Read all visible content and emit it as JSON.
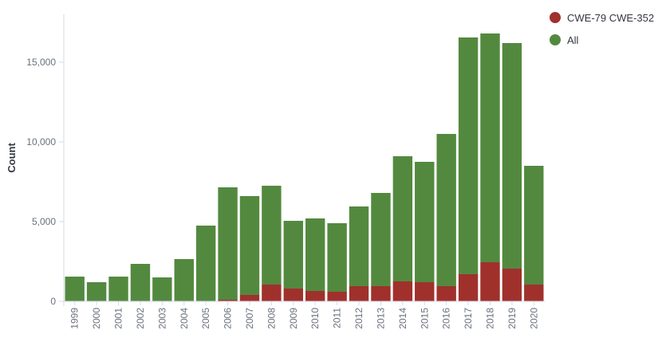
{
  "chart_data": {
    "type": "bar",
    "stacked": true,
    "categories": [
      "1999",
      "2000",
      "2001",
      "2002",
      "2003",
      "2004",
      "2005",
      "2006",
      "2007",
      "2008",
      "2009",
      "2010",
      "2011",
      "2012",
      "2013",
      "2014",
      "2015",
      "2016",
      "2017",
      "2018",
      "2019",
      "2020"
    ],
    "series": [
      {
        "name": "CWE-79 CWE-352",
        "color": "#a0302c",
        "values": [
          0,
          0,
          0,
          0,
          0,
          0,
          0,
          100,
          400,
          1050,
          800,
          650,
          600,
          950,
          950,
          1250,
          1200,
          950,
          1700,
          2450,
          2050,
          1050
        ]
      },
      {
        "name": "All",
        "color": "#53893f",
        "values": [
          1550,
          1200,
          1550,
          2350,
          1500,
          2650,
          4750,
          7050,
          6200,
          6200,
          4250,
          4550,
          4300,
          5000,
          5850,
          7850,
          7550,
          9550,
          14850,
          14350,
          14150,
          7450
        ]
      }
    ],
    "ylabel": "Count",
    "xlabel": "",
    "ylim": [
      0,
      18000
    ],
    "y_ticks": [
      0,
      5000,
      10000,
      15000
    ],
    "y_tick_labels": [
      "0",
      "5,000",
      "10,000",
      "15,000"
    ],
    "legend_position": "top-right",
    "grid": false
  }
}
